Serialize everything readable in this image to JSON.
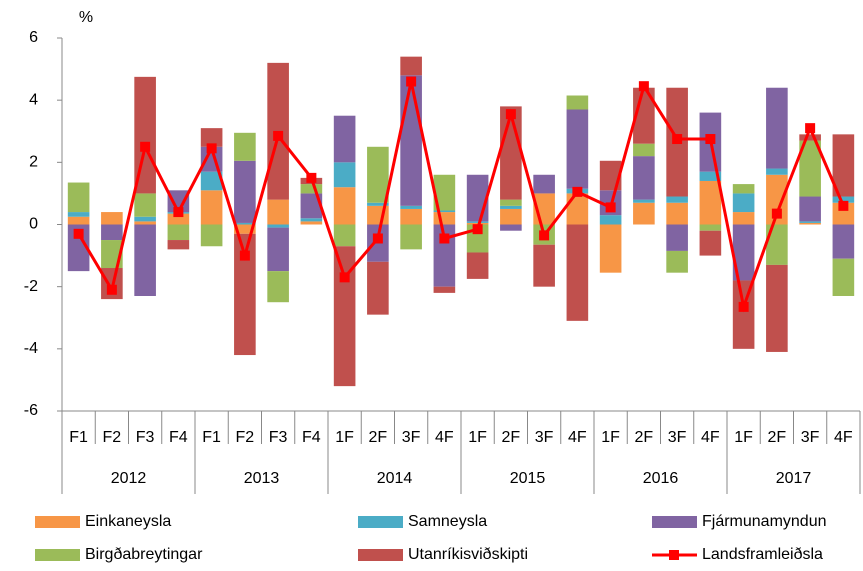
{
  "chart_data": {
    "type": "bar",
    "stacked": true,
    "y_label": "%",
    "categories": [
      "F1",
      "F2",
      "F3",
      "F4",
      "F1",
      "F2",
      "F3",
      "F4",
      "1F",
      "2F",
      "3F",
      "4F",
      "1F",
      "2F",
      "3F",
      "4F",
      "1F",
      "2F",
      "3F",
      "4F",
      "1F",
      "2F",
      "3F",
      "4F"
    ],
    "groups": [
      "2012",
      "2013",
      "2014",
      "2015",
      "2016",
      "2017"
    ],
    "ylim": [
      -6,
      6
    ],
    "yticks": [
      -6,
      -4,
      -2,
      0,
      2,
      4,
      6
    ],
    "grid": false,
    "legend": "bottom",
    "series": [
      {
        "name": "Einkaneysla",
        "type": "bar",
        "color": "#f79646",
        "values": [
          0.25,
          0.4,
          0.1,
          0.35,
          1.1,
          -0.3,
          0.8,
          0.1,
          1.2,
          0.6,
          0.5,
          0.4,
          0.05,
          0.5,
          1.0,
          1.0,
          -1.55,
          0.7,
          0.7,
          1.4,
          0.4,
          1.6,
          0.05,
          0.7
        ]
      },
      {
        "name": "Samneysla",
        "type": "bar",
        "color": "#4bacc6",
        "values": [
          0.15,
          0,
          0.15,
          0.05,
          0.6,
          0.05,
          -0.1,
          0.1,
          0.8,
          0.1,
          0.1,
          0.05,
          0.05,
          0.1,
          0,
          0.15,
          0.3,
          0.1,
          0.2,
          0.3,
          0.6,
          0.2,
          0.05,
          0.2
        ]
      },
      {
        "name": "Fjármunamyndun",
        "type": "bar",
        "color": "#8064a2",
        "values": [
          -1.5,
          -0.5,
          -2.3,
          0.7,
          0.8,
          2.0,
          -1.4,
          0.8,
          1.5,
          -1.2,
          4.2,
          -2.0,
          1.5,
          -0.2,
          0.6,
          2.55,
          0.8,
          1.4,
          -0.85,
          1.9,
          -1.8,
          2.6,
          0.8,
          -1.1
        ]
      },
      {
        "name": "Birgðabreytingar",
        "type": "bar",
        "color": "#9bbb59",
        "values": [
          0.95,
          -0.9,
          0.75,
          -0.5,
          -0.7,
          0.9,
          -1.0,
          0.3,
          -0.7,
          1.8,
          -0.8,
          1.15,
          -0.9,
          0.2,
          -0.65,
          0.45,
          0,
          0.4,
          -0.7,
          -0.2,
          0.3,
          -1.3,
          1.8,
          -1.2
        ]
      },
      {
        "name": "Utanríkisviðskipti",
        "type": "bar",
        "color": "#c0504d",
        "values": [
          0,
          -1.0,
          3.75,
          -0.3,
          0.6,
          -3.9,
          4.4,
          0.2,
          -4.5,
          -1.7,
          0.6,
          -0.2,
          -0.85,
          3.0,
          -1.35,
          -3.1,
          0.95,
          1.8,
          3.5,
          -0.8,
          -2.2,
          -2.8,
          0.2,
          2.0
        ]
      },
      {
        "name": "Landsframleiðsla",
        "type": "line",
        "color": "#ff0000",
        "values": [
          -0.3,
          -2.1,
          2.5,
          0.4,
          2.45,
          -1.0,
          2.85,
          1.5,
          -1.7,
          -0.45,
          4.6,
          -0.45,
          -0.15,
          3.55,
          -0.35,
          1.05,
          0.55,
          4.45,
          2.75,
          2.75,
          -2.65,
          0.35,
          3.1,
          0.6
        ]
      }
    ]
  }
}
